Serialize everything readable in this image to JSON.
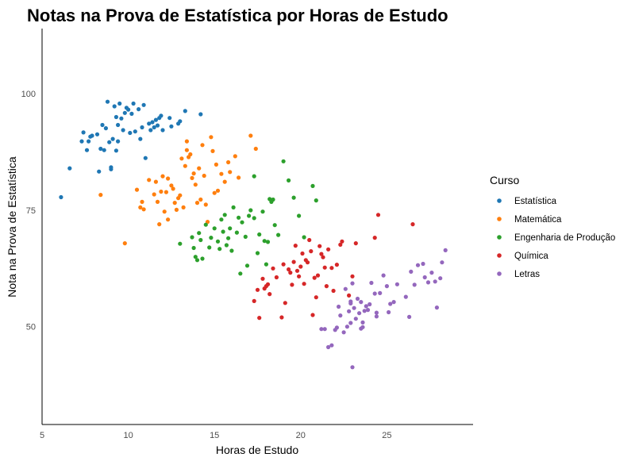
{
  "chart_data": {
    "type": "scatter",
    "title": "Notas na Prova de Estatística por Horas de Estudo",
    "xlabel": "Horas de Estudo",
    "ylabel": "Nota na Prova de Estatística",
    "xlim": [
      5,
      30
    ],
    "ylim": [
      29,
      114
    ],
    "x_ticks": [
      5,
      10,
      15,
      20,
      25
    ],
    "y_ticks": [
      50,
      75,
      100
    ],
    "grid": false,
    "legend": {
      "title": "Curso",
      "position": "right"
    },
    "series": [
      {
        "name": "Estatística",
        "color": "#1f77b4",
        "points": [
          [
            6.1,
            77.8
          ],
          [
            6.6,
            84.0
          ],
          [
            7.3,
            89.8
          ],
          [
            7.4,
            91.7
          ],
          [
            7.6,
            87.9
          ],
          [
            7.7,
            89.8
          ],
          [
            7.8,
            90.8
          ],
          [
            7.9,
            91.0
          ],
          [
            8.2,
            91.3
          ],
          [
            8.3,
            83.3
          ],
          [
            8.4,
            88.2
          ],
          [
            8.5,
            93.3
          ],
          [
            8.6,
            87.9
          ],
          [
            8.7,
            92.6
          ],
          [
            8.8,
            98.3
          ],
          [
            8.9,
            89.6
          ],
          [
            9.0,
            83.8
          ],
          [
            9.0,
            84.2
          ],
          [
            9.1,
            90.3
          ],
          [
            9.2,
            97.3
          ],
          [
            9.3,
            95.0
          ],
          [
            9.3,
            87.8
          ],
          [
            9.4,
            89.8
          ],
          [
            9.4,
            93.3
          ],
          [
            9.5,
            97.9
          ],
          [
            9.6,
            94.7
          ],
          [
            9.7,
            92.2
          ],
          [
            9.8,
            95.9
          ],
          [
            9.9,
            97.0
          ],
          [
            10.0,
            96.6
          ],
          [
            10.1,
            91.6
          ],
          [
            10.2,
            95.7
          ],
          [
            10.3,
            97.9
          ],
          [
            10.4,
            91.9
          ],
          [
            10.6,
            96.7
          ],
          [
            10.7,
            90.3
          ],
          [
            10.8,
            92.8
          ],
          [
            10.9,
            97.6
          ],
          [
            11.0,
            86.2
          ],
          [
            11.2,
            93.6
          ],
          [
            11.3,
            92.2
          ],
          [
            11.4,
            93.9
          ],
          [
            11.5,
            92.8
          ],
          [
            11.6,
            94.4
          ],
          [
            11.7,
            93.2
          ],
          [
            11.8,
            94.8
          ],
          [
            11.9,
            95.3
          ],
          [
            12.0,
            92.2
          ],
          [
            12.4,
            94.8
          ],
          [
            12.5,
            93.0
          ],
          [
            12.9,
            93.6
          ],
          [
            13.0,
            94.1
          ],
          [
            13.3,
            96.3
          ],
          [
            14.2,
            95.6
          ]
        ]
      },
      {
        "name": "Matemática",
        "color": "#ff7f0e",
        "points": [
          [
            8.4,
            78.3
          ],
          [
            9.8,
            67.9
          ],
          [
            10.5,
            79.4
          ],
          [
            10.7,
            75.6
          ],
          [
            10.8,
            76.8
          ],
          [
            10.9,
            75.2
          ],
          [
            11.2,
            81.5
          ],
          [
            11.5,
            78.4
          ],
          [
            11.6,
            81.1
          ],
          [
            11.7,
            76.8
          ],
          [
            11.8,
            72.0
          ],
          [
            11.9,
            79.0
          ],
          [
            12.0,
            82.3
          ],
          [
            12.1,
            74.7
          ],
          [
            12.2,
            78.9
          ],
          [
            12.3,
            73.0
          ],
          [
            12.3,
            81.8
          ],
          [
            12.5,
            80.3
          ],
          [
            12.6,
            79.6
          ],
          [
            12.7,
            76.6
          ],
          [
            12.8,
            75.1
          ],
          [
            12.9,
            77.6
          ],
          [
            13.0,
            78.2
          ],
          [
            13.1,
            86.1
          ],
          [
            13.2,
            75.6
          ],
          [
            13.3,
            84.5
          ],
          [
            13.4,
            87.9
          ],
          [
            13.4,
            89.8
          ],
          [
            13.5,
            86.4
          ],
          [
            13.6,
            87.0
          ],
          [
            13.7,
            81.9
          ],
          [
            13.8,
            82.9
          ],
          [
            13.9,
            80.5
          ],
          [
            14.0,
            76.6
          ],
          [
            14.1,
            84.0
          ],
          [
            14.2,
            77.3
          ],
          [
            14.3,
            89.0
          ],
          [
            14.4,
            82.4
          ],
          [
            14.5,
            76.2
          ],
          [
            14.6,
            72.5
          ],
          [
            14.8,
            90.7
          ],
          [
            14.9,
            87.7
          ],
          [
            15.0,
            78.7
          ],
          [
            15.1,
            84.8
          ],
          [
            15.2,
            79.2
          ],
          [
            15.4,
            82.8
          ],
          [
            15.6,
            81.1
          ],
          [
            15.8,
            85.3
          ],
          [
            15.9,
            83.2
          ],
          [
            16.2,
            86.6
          ],
          [
            16.4,
            82.0
          ],
          [
            17.1,
            91.0
          ],
          [
            17.4,
            88.2
          ]
        ]
      },
      {
        "name": "Engenharia de Produção",
        "color": "#2ca02c",
        "points": [
          [
            13.0,
            67.8
          ],
          [
            13.7,
            69.2
          ],
          [
            13.8,
            66.9
          ],
          [
            13.9,
            65.0
          ],
          [
            14.0,
            64.3
          ],
          [
            14.1,
            70.1
          ],
          [
            14.2,
            68.6
          ],
          [
            14.3,
            64.6
          ],
          [
            14.5,
            71.9
          ],
          [
            14.7,
            67.0
          ],
          [
            14.8,
            69.1
          ],
          [
            15.0,
            71.1
          ],
          [
            15.2,
            68.3
          ],
          [
            15.3,
            66.7
          ],
          [
            15.4,
            73.0
          ],
          [
            15.5,
            70.4
          ],
          [
            15.6,
            74.0
          ],
          [
            15.7,
            67.5
          ],
          [
            15.8,
            69.0
          ],
          [
            15.9,
            71.1
          ],
          [
            16.0,
            66.3
          ],
          [
            16.1,
            75.6
          ],
          [
            16.3,
            70.2
          ],
          [
            16.4,
            73.4
          ],
          [
            16.5,
            61.4
          ],
          [
            16.6,
            72.4
          ],
          [
            16.8,
            69.3
          ],
          [
            16.9,
            63.1
          ],
          [
            17.0,
            73.8
          ],
          [
            17.1,
            75.0
          ],
          [
            17.3,
            73.3
          ],
          [
            17.5,
            65.8
          ],
          [
            17.6,
            69.8
          ],
          [
            17.8,
            74.7
          ],
          [
            17.9,
            68.4
          ],
          [
            18.0,
            63.4
          ],
          [
            18.1,
            68.2
          ],
          [
            18.2,
            77.4
          ],
          [
            18.3,
            76.8
          ],
          [
            18.4,
            77.3
          ],
          [
            18.5,
            71.8
          ],
          [
            18.7,
            69.7
          ],
          [
            19.0,
            85.5
          ],
          [
            19.3,
            81.4
          ],
          [
            19.6,
            77.7
          ],
          [
            19.9,
            73.8
          ],
          [
            20.2,
            69.2
          ],
          [
            20.7,
            80.2
          ],
          [
            20.9,
            77.1
          ],
          [
            17.3,
            82.3
          ]
        ]
      },
      {
        "name": "Química",
        "color": "#d62728",
        "points": [
          [
            17.3,
            55.5
          ],
          [
            17.5,
            57.9
          ],
          [
            17.6,
            51.9
          ],
          [
            17.8,
            60.3
          ],
          [
            17.9,
            58.2
          ],
          [
            18.0,
            58.7
          ],
          [
            18.1,
            59.1
          ],
          [
            18.2,
            57.0
          ],
          [
            18.4,
            62.5
          ],
          [
            18.6,
            60.6
          ],
          [
            18.9,
            52.0
          ],
          [
            19.0,
            63.4
          ],
          [
            19.1,
            55.1
          ],
          [
            19.3,
            62.3
          ],
          [
            19.4,
            61.6
          ],
          [
            19.5,
            59.0
          ],
          [
            19.6,
            63.9
          ],
          [
            19.7,
            67.4
          ],
          [
            19.8,
            62.0
          ],
          [
            19.9,
            60.8
          ],
          [
            20.0,
            62.9
          ],
          [
            20.1,
            65.7
          ],
          [
            20.2,
            59.2
          ],
          [
            20.3,
            64.3
          ],
          [
            20.4,
            63.8
          ],
          [
            20.5,
            68.6
          ],
          [
            20.6,
            66.2
          ],
          [
            20.7,
            52.5
          ],
          [
            20.8,
            60.5
          ],
          [
            20.9,
            56.3
          ],
          [
            21.0,
            61.0
          ],
          [
            21.1,
            67.3
          ],
          [
            21.2,
            65.6
          ],
          [
            21.3,
            64.9
          ],
          [
            21.4,
            62.7
          ],
          [
            21.5,
            58.7
          ],
          [
            21.6,
            66.6
          ],
          [
            21.8,
            62.6
          ],
          [
            21.9,
            57.7
          ],
          [
            22.1,
            63.3
          ],
          [
            22.3,
            67.6
          ],
          [
            22.4,
            68.3
          ],
          [
            22.8,
            56.7
          ],
          [
            23.0,
            60.8
          ],
          [
            23.2,
            67.9
          ],
          [
            24.3,
            69.1
          ],
          [
            24.5,
            74.0
          ],
          [
            26.5,
            72.0
          ]
        ]
      },
      {
        "name": "Letras",
        "color": "#9467bd",
        "points": [
          [
            21.6,
            45.6
          ],
          [
            21.8,
            46.0
          ],
          [
            22.0,
            49.3
          ],
          [
            22.2,
            54.3
          ],
          [
            22.3,
            52.4
          ],
          [
            22.5,
            48.8
          ],
          [
            22.6,
            58.1
          ],
          [
            22.7,
            50.0
          ],
          [
            22.8,
            53.3
          ],
          [
            22.9,
            55.0
          ],
          [
            23.0,
            59.3
          ],
          [
            23.0,
            41.3
          ],
          [
            23.1,
            54.0
          ],
          [
            23.2,
            51.7
          ],
          [
            23.3,
            56.0
          ],
          [
            23.4,
            52.9
          ],
          [
            23.5,
            55.3
          ],
          [
            23.6,
            50.9
          ],
          [
            23.7,
            53.4
          ],
          [
            23.8,
            54.4
          ],
          [
            23.9,
            53.6
          ],
          [
            24.0,
            54.8
          ],
          [
            24.1,
            59.4
          ],
          [
            24.3,
            57.1
          ],
          [
            24.4,
            52.2
          ],
          [
            24.6,
            57.2
          ],
          [
            24.8,
            61.0
          ],
          [
            25.0,
            58.7
          ],
          [
            25.2,
            54.9
          ],
          [
            25.4,
            55.3
          ],
          [
            25.6,
            59.1
          ],
          [
            26.1,
            56.4
          ],
          [
            26.4,
            61.8
          ],
          [
            26.6,
            59.0
          ],
          [
            26.8,
            63.2
          ],
          [
            27.1,
            63.5
          ],
          [
            27.2,
            60.6
          ],
          [
            27.4,
            59.5
          ],
          [
            27.6,
            61.6
          ],
          [
            27.8,
            59.7
          ],
          [
            28.1,
            60.4
          ],
          [
            28.2,
            63.8
          ],
          [
            27.9,
            54.1
          ],
          [
            26.3,
            52.1
          ],
          [
            25.1,
            53.1
          ],
          [
            24.4,
            53.0
          ],
          [
            23.5,
            49.6
          ],
          [
            22.9,
            50.8
          ],
          [
            22.1,
            49.8
          ],
          [
            21.4,
            49.5
          ],
          [
            21.2,
            49.5
          ],
          [
            28.4,
            66.4
          ],
          [
            22.9,
            55.4
          ],
          [
            23.6,
            49.9
          ]
        ]
      }
    ]
  }
}
